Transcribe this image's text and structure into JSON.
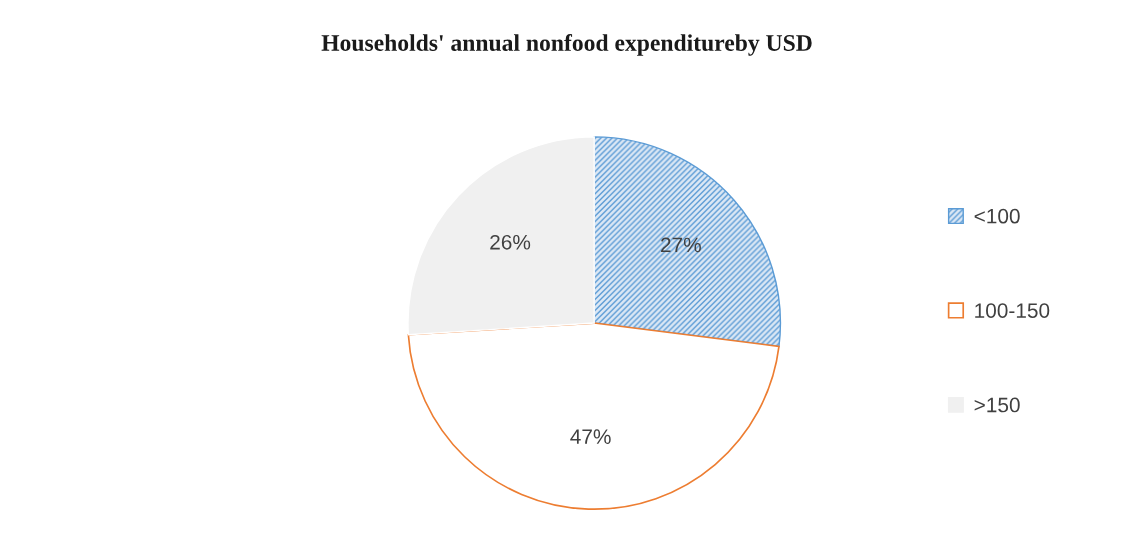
{
  "chart_data": {
    "type": "pie",
    "title": "Households' annual nonfood expenditureby USD",
    "categories": [
      "<100",
      "100-150",
      ">150"
    ],
    "values": [
      27,
      47,
      26
    ],
    "colors": [
      "#5b9bd5",
      "#ed7d31",
      "#f0f0f0"
    ],
    "value_labels": [
      "27%",
      "47%",
      "26%"
    ],
    "legend": "right"
  }
}
